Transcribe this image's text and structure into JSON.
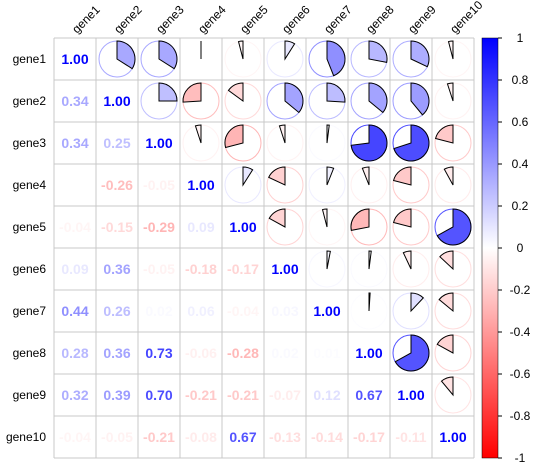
{
  "chart_data": {
    "type": "heatmap",
    "style": "mixed correlation plot: pie glyphs (upper triangle), numeric coefficients (lower triangle and diagonal)",
    "title": "",
    "genes": [
      "gene1",
      "gene2",
      "gene3",
      "gene4",
      "gene5",
      "gene6",
      "gene7",
      "gene8",
      "gene9",
      "gene10"
    ],
    "row_labels": [
      "gene1",
      "gene2",
      "gene3",
      "gene4",
      "gene5",
      "gene6",
      "gene7",
      "gene8",
      "gene9",
      "gene10"
    ],
    "col_labels": [
      "gene1",
      "gene2",
      "gene3",
      "gene4",
      "gene5",
      "gene6",
      "gene7",
      "gene8",
      "gene9",
      "gene10"
    ],
    "matrix": [
      [
        1.0,
        0.34,
        0.34,
        0.0,
        -0.04,
        0.09,
        0.44,
        0.28,
        0.32,
        -0.04
      ],
      [
        0.34,
        1.0,
        0.25,
        -0.26,
        -0.15,
        0.36,
        0.26,
        0.36,
        0.39,
        -0.05
      ],
      [
        0.34,
        0.25,
        1.0,
        -0.05,
        -0.29,
        -0.05,
        0.02,
        0.73,
        0.7,
        -0.21
      ],
      [
        0.0,
        -0.26,
        -0.05,
        1.0,
        0.09,
        -0.18,
        0.06,
        -0.06,
        -0.21,
        -0.08
      ],
      [
        -0.04,
        -0.15,
        -0.29,
        0.09,
        1.0,
        -0.17,
        -0.04,
        -0.28,
        -0.21,
        0.67
      ],
      [
        0.09,
        0.36,
        -0.05,
        -0.18,
        -0.17,
        1.0,
        0.03,
        0.02,
        -0.07,
        -0.13
      ],
      [
        0.44,
        0.26,
        0.02,
        0.06,
        -0.04,
        0.03,
        1.0,
        0.01,
        0.12,
        -0.14
      ],
      [
        0.28,
        0.36,
        0.73,
        -0.06,
        -0.28,
        0.02,
        0.01,
        1.0,
        0.67,
        -0.17
      ],
      [
        0.32,
        0.39,
        0.7,
        -0.21,
        -0.21,
        -0.07,
        0.12,
        0.67,
        1.0,
        -0.11
      ],
      [
        -0.04,
        -0.05,
        -0.21,
        -0.08,
        0.67,
        -0.13,
        -0.14,
        -0.17,
        -0.11,
        1.0
      ]
    ],
    "colorbar": {
      "min": -1,
      "max": 1,
      "ticks": [
        "1",
        "0.8",
        "0.6",
        "0.4",
        "0.2",
        "0",
        "-0.2",
        "-0.4",
        "-0.6",
        "-0.8",
        "-1"
      ],
      "tick_values": [
        1,
        0.8,
        0.6,
        0.4,
        0.2,
        0,
        -0.2,
        -0.4,
        -0.6,
        -0.8,
        -1
      ],
      "colors": {
        "negative": "#ff0000",
        "zero": "#ffffff",
        "positive": "#0000ff"
      },
      "position": "right"
    },
    "grid": true
  }
}
